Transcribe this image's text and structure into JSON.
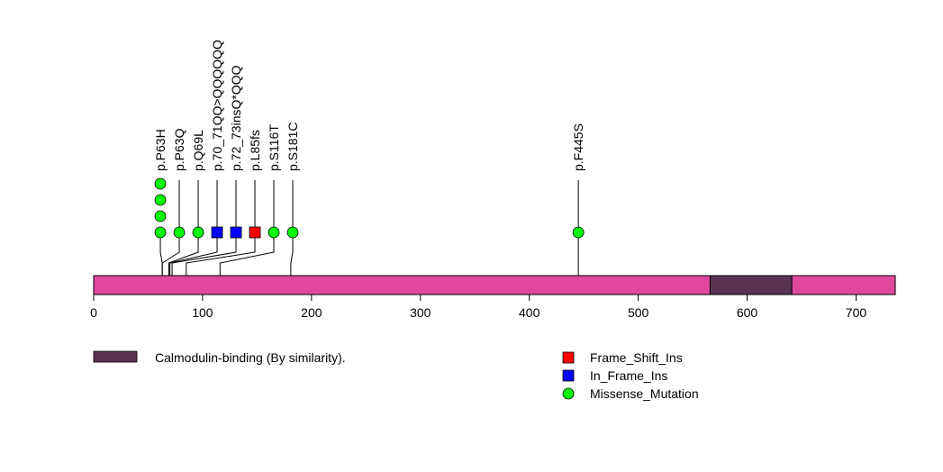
{
  "chart_data": {
    "type": "lollipop",
    "protein_length": 736,
    "xlim": [
      0,
      736
    ],
    "xticks": [
      0,
      100,
      200,
      300,
      400,
      500,
      600,
      700
    ],
    "protein_color": "#e0489e",
    "domains": [
      {
        "name": "Calmodulin-binding (By similarity).",
        "start": 566,
        "end": 641,
        "color": "#5a3352"
      }
    ],
    "mutation_types": [
      {
        "name": "Frame_Shift_Ins",
        "shape": "square",
        "color": "#ff0000"
      },
      {
        "name": "In_Frame_Ins",
        "shape": "square",
        "color": "#0000ff"
      },
      {
        "name": "Missense_Mutation",
        "shape": "circle",
        "color": "#00ff00"
      }
    ],
    "mutations": [
      {
        "label": "p.P63H",
        "position": 63,
        "count": 4,
        "type": "Missense_Mutation"
      },
      {
        "label": "p.P63Q",
        "position": 63,
        "count": 1,
        "type": "Missense_Mutation"
      },
      {
        "label": "p.Q69L",
        "position": 69,
        "count": 1,
        "type": "Missense_Mutation"
      },
      {
        "label": "p.70_71QQ>QQQQQQ",
        "position": 70,
        "count": 1,
        "type": "In_Frame_Ins"
      },
      {
        "label": "p.72_73insQ*QQQ",
        "position": 72,
        "count": 1,
        "type": "In_Frame_Ins"
      },
      {
        "label": "p.L85fs",
        "position": 85,
        "count": 1,
        "type": "Frame_Shift_Ins"
      },
      {
        "label": "p.S116T",
        "position": 116,
        "count": 1,
        "type": "Missense_Mutation"
      },
      {
        "label": "p.S181C",
        "position": 181,
        "count": 1,
        "type": "Missense_Mutation"
      },
      {
        "label": "p.F445S",
        "position": 445,
        "count": 1,
        "type": "Missense_Mutation"
      }
    ]
  }
}
